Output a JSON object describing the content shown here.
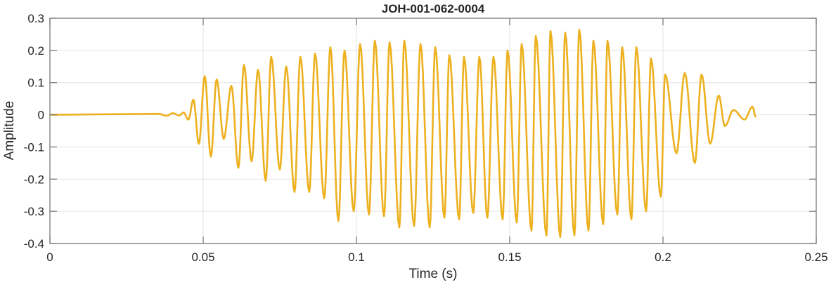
{
  "chart_data": {
    "type": "line",
    "title": "JOH-001-062-0004",
    "xlabel": "Time (s)",
    "ylabel": "Amplitude",
    "xlim": [
      0,
      0.25
    ],
    "ylim": [
      -0.4,
      0.3
    ],
    "grid": true,
    "xticks": [
      0,
      0.05,
      0.1,
      0.15,
      0.2,
      0.25
    ],
    "xtick_labels": [
      "0",
      "0.05",
      "0.1",
      "0.15",
      "0.2",
      "0.25"
    ],
    "yticks": [
      0.3,
      0.2,
      0.1,
      0,
      -0.1,
      -0.2,
      -0.3,
      -0.4
    ],
    "ytick_labels": [
      "0.3",
      "0.2",
      "0.1",
      "0",
      "-0.1",
      "-0.2",
      "-0.3",
      "-0.4"
    ],
    "series": [
      {
        "name": "waveform",
        "color": "#EDB120",
        "points": [
          [
            0,
            0
          ],
          [
            0.0353,
            0.003
          ],
          [
            0.0381,
            -0.003
          ],
          [
            0.0401,
            0.005
          ],
          [
            0.0422,
            -0.002
          ],
          [
            0.0436,
            0.007
          ],
          [
            0.0452,
            -0.015
          ],
          [
            0.0468,
            0.047
          ],
          [
            0.0486,
            -0.09
          ],
          [
            0.0505,
            0.12
          ],
          [
            0.0525,
            -0.13
          ],
          [
            0.0544,
            0.11
          ],
          [
            0.0567,
            -0.075
          ],
          [
            0.0592,
            0.09
          ],
          [
            0.0615,
            -0.165
          ],
          [
            0.0633,
            0.155
          ],
          [
            0.0658,
            -0.145
          ],
          [
            0.0679,
            0.14
          ],
          [
            0.0704,
            -0.205
          ],
          [
            0.0722,
            0.18
          ],
          [
            0.075,
            -0.17
          ],
          [
            0.0771,
            0.15
          ],
          [
            0.0798,
            -0.24
          ],
          [
            0.0817,
            0.18
          ],
          [
            0.0846,
            -0.24
          ],
          [
            0.0865,
            0.19
          ],
          [
            0.0895,
            -0.26
          ],
          [
            0.0915,
            0.21
          ],
          [
            0.0941,
            -0.33
          ],
          [
            0.0961,
            0.2
          ],
          [
            0.0991,
            -0.3
          ],
          [
            0.1012,
            0.22
          ],
          [
            0.1041,
            -0.31
          ],
          [
            0.106,
            0.23
          ],
          [
            0.109,
            -0.315
          ],
          [
            0.1108,
            0.225
          ],
          [
            0.114,
            -0.35
          ],
          [
            0.1156,
            0.23
          ],
          [
            0.1188,
            -0.345
          ],
          [
            0.1209,
            0.22
          ],
          [
            0.1239,
            -0.35
          ],
          [
            0.1257,
            0.21
          ],
          [
            0.1287,
            -0.32
          ],
          [
            0.1303,
            0.185
          ],
          [
            0.1335,
            -0.325
          ],
          [
            0.1351,
            0.18
          ],
          [
            0.1381,
            -0.305
          ],
          [
            0.1401,
            0.18
          ],
          [
            0.1427,
            -0.32
          ],
          [
            0.1447,
            0.18
          ],
          [
            0.1477,
            -0.325
          ],
          [
            0.1493,
            0.2
          ],
          [
            0.1523,
            -0.335
          ],
          [
            0.1539,
            0.22
          ],
          [
            0.1571,
            -0.36
          ],
          [
            0.1585,
            0.245
          ],
          [
            0.162,
            -0.375
          ],
          [
            0.1633,
            0.26
          ],
          [
            0.1665,
            -0.38
          ],
          [
            0.1681,
            0.255
          ],
          [
            0.1711,
            -0.375
          ],
          [
            0.1727,
            0.265
          ],
          [
            0.1757,
            -0.36
          ],
          [
            0.1773,
            0.23
          ],
          [
            0.1805,
            -0.34
          ],
          [
            0.1819,
            0.23
          ],
          [
            0.1851,
            -0.31
          ],
          [
            0.1867,
            0.21
          ],
          [
            0.1897,
            -0.325
          ],
          [
            0.1913,
            0.21
          ],
          [
            0.1945,
            -0.3
          ],
          [
            0.1961,
            0.175
          ],
          [
            0.1993,
            -0.255
          ],
          [
            0.2007,
            0.125
          ],
          [
            0.2044,
            -0.12
          ],
          [
            0.2071,
            0.13
          ],
          [
            0.2104,
            -0.15
          ],
          [
            0.2126,
            0.125
          ],
          [
            0.2154,
            -0.09
          ],
          [
            0.2182,
            0.06
          ],
          [
            0.2202,
            -0.035
          ],
          [
            0.223,
            0.015
          ],
          [
            0.2266,
            -0.015
          ],
          [
            0.2292,
            0.025
          ],
          [
            0.2303,
            -0.007
          ]
        ]
      }
    ]
  }
}
